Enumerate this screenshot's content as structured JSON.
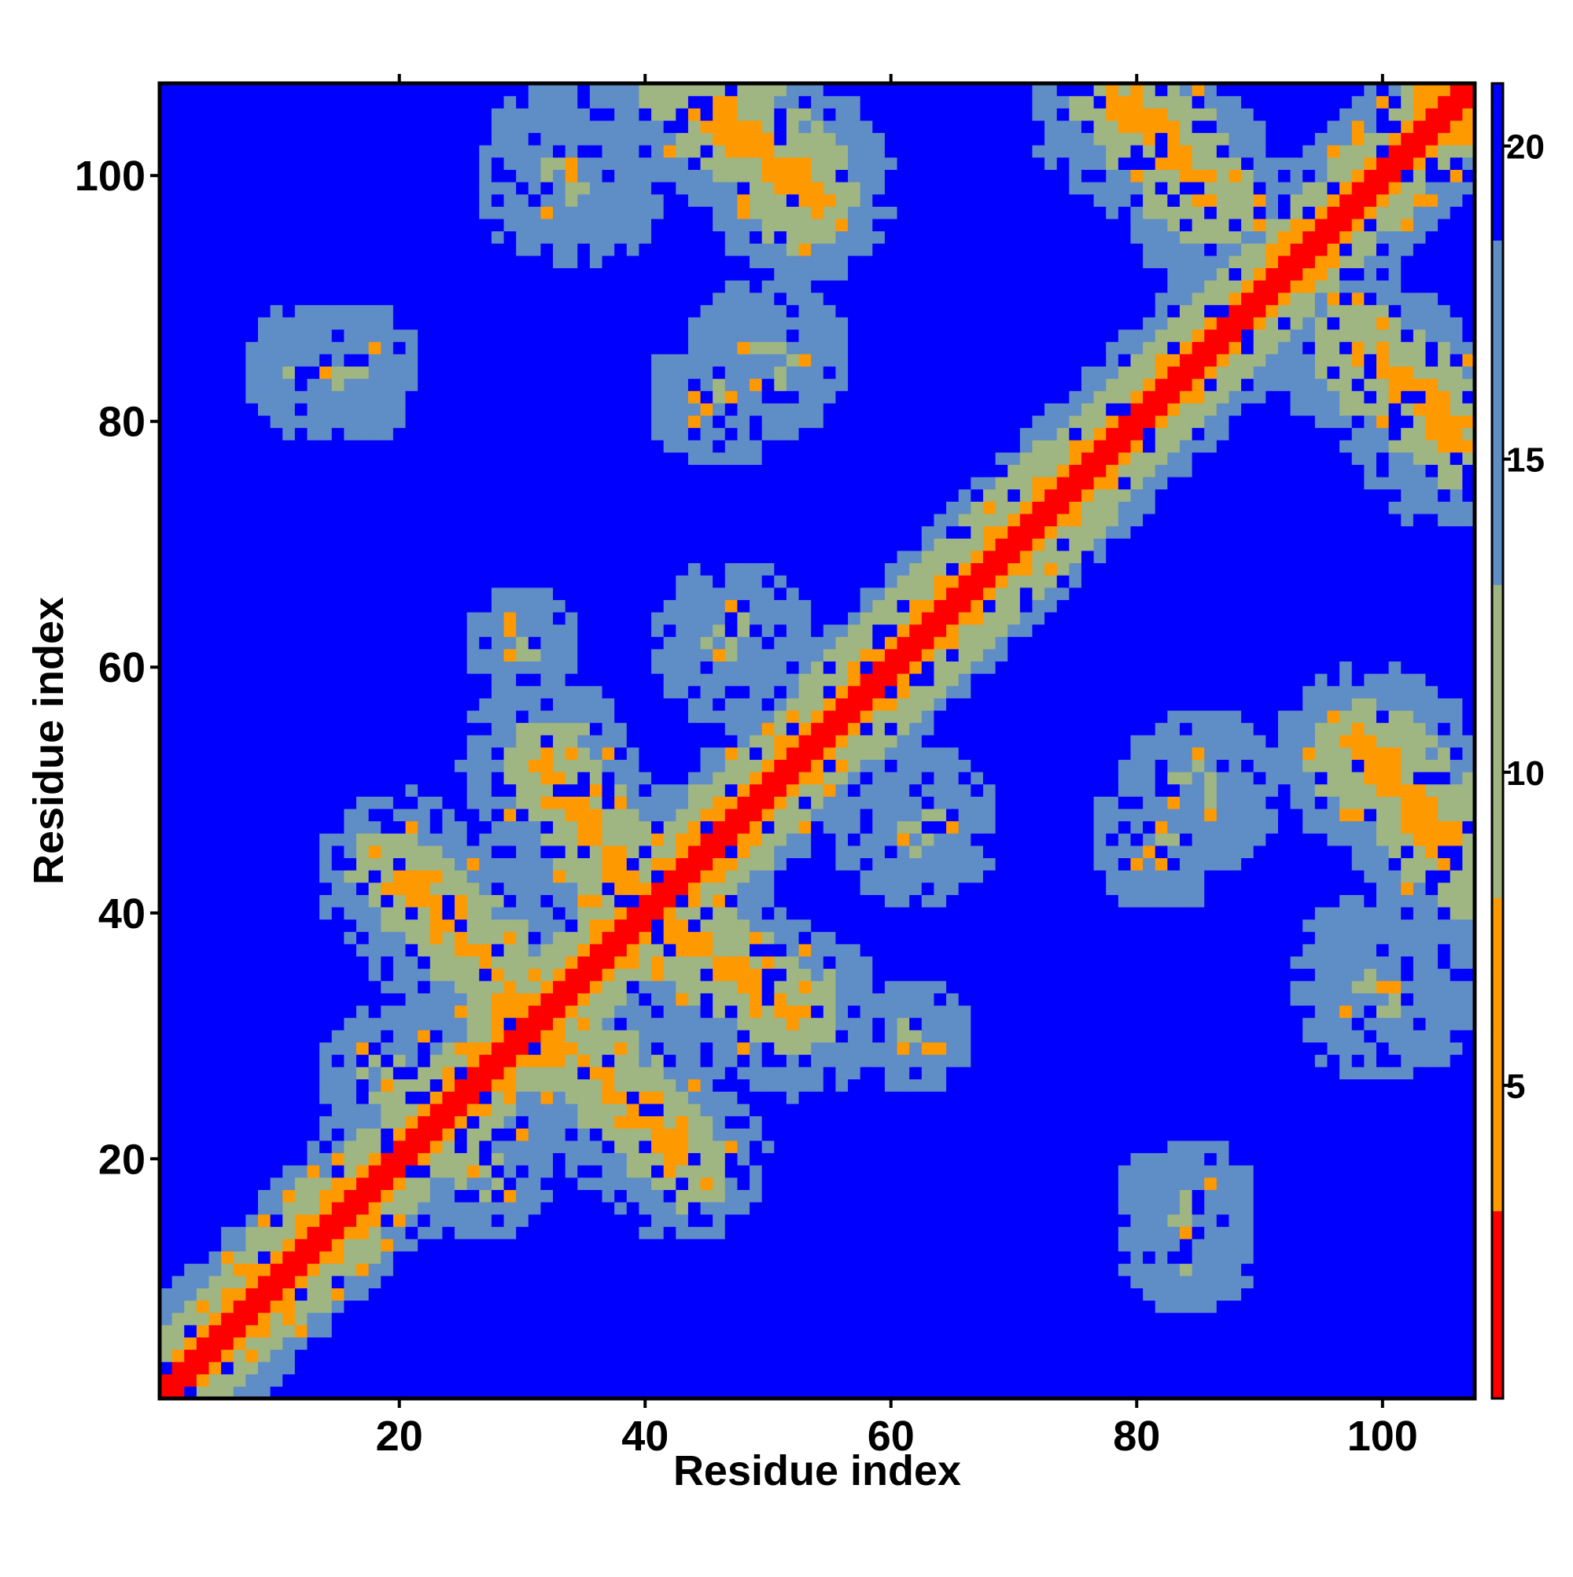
{
  "chart_data": {
    "type": "heatmap",
    "title": "",
    "xlabel": "Residue index",
    "ylabel": "Residue index",
    "n_residues": 107,
    "xlim": [
      1,
      107
    ],
    "ylim": [
      1,
      107
    ],
    "x_ticks": [
      20,
      40,
      60,
      80,
      100
    ],
    "y_ticks": [
      20,
      40,
      60,
      80,
      100
    ],
    "colorbar": {
      "ticks": [
        5,
        10,
        15,
        20
      ],
      "range": [
        0,
        21
      ],
      "colors": {
        "contact": "#ff0000",
        "near": "#ff9900",
        "mid": "#9fb582",
        "far": "#5f8dc6",
        "background": "#0000ff"
      }
    },
    "symmetric": true,
    "diagonal_value": 1,
    "background_value": 21,
    "contact_features": [
      {
        "kind": "diagonal_band",
        "from": [
          1,
          1
        ],
        "to": [
          107,
          107
        ],
        "half_width": 1.8,
        "value": 1
      },
      {
        "kind": "band",
        "from": [
          56,
          56
        ],
        "to": [
          75,
          75
        ],
        "half_width": 6,
        "value": 6
      },
      {
        "kind": "antiparallel",
        "from": [
          20,
          43
        ],
        "to": [
          32,
          31
        ],
        "value": 6
      },
      {
        "kind": "antiparallel",
        "from": [
          32,
          52
        ],
        "to": [
          40,
          40
        ],
        "value": 6
      },
      {
        "kind": "antiparallel",
        "from": [
          46,
          106
        ],
        "to": [
          53,
          98
        ],
        "value": 6
      },
      {
        "kind": "antiparallel",
        "from": [
          80,
          106
        ],
        "to": [
          86,
          98
        ],
        "value": 6
      },
      {
        "kind": "antiparallel",
        "from": [
          100,
          84
        ],
        "to": [
          106,
          78
        ],
        "value": 6
      },
      {
        "kind": "antiparallel",
        "from": [
          100,
          53
        ],
        "to": [
          106,
          44
        ],
        "value": 6
      },
      {
        "kind": "blob",
        "center": [
          20,
          26
        ],
        "radius": 7,
        "value": 11
      },
      {
        "kind": "blob",
        "center": [
          13,
          84
        ],
        "radius": 6,
        "value": 12
      },
      {
        "kind": "blob",
        "center": [
          50,
          85
        ],
        "radius": 7,
        "value": 12
      },
      {
        "kind": "blob",
        "center": [
          47,
          62
        ],
        "radius": 7,
        "value": 12
      },
      {
        "kind": "blob",
        "center": [
          84,
          16
        ],
        "radius": 6,
        "value": 12
      },
      {
        "kind": "blob",
        "center": [
          82,
          46
        ],
        "radius": 6,
        "value": 12
      },
      {
        "kind": "blob",
        "center": [
          100,
          34
        ],
        "radius": 8,
        "value": 12
      },
      {
        "kind": "blob",
        "center": [
          62,
          30
        ],
        "radius": 5,
        "value": 12
      }
    ]
  }
}
